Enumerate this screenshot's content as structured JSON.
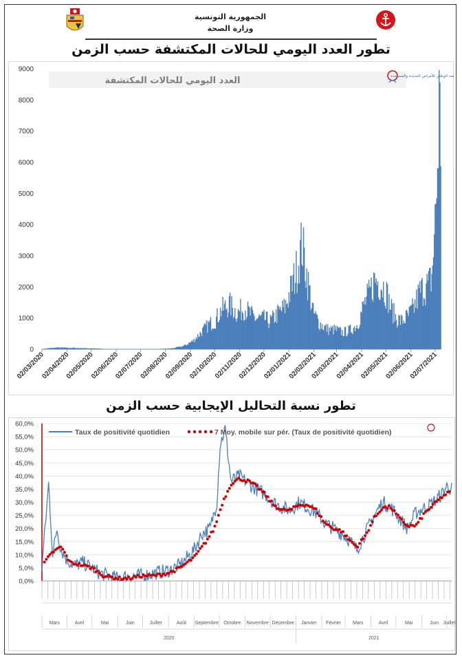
{
  "header": {
    "country_name": "الجمهورية التونسية",
    "ministry_name": "وزارة الصحة",
    "emblem_left_icon": "tunisia-coat-of-arms-icon",
    "emblem_right_icon": "health-ministry-anchor-logo-icon"
  },
  "section1": {
    "title": "تطور العدد اليومي للحالات المكتشفة حسب الزمن"
  },
  "section2": {
    "title": "تطور نسبة التحاليل الإيجابية حسب الزمن"
  },
  "observatory_logo_text": "المرصد الوطني للأمراض الجديدة والمستجدة",
  "chart_data": [
    {
      "type": "bar",
      "title": "العدد اليومي للحالات المكتشفة",
      "ylim": [
        0,
        9000
      ],
      "yticks": [
        0,
        1000,
        2000,
        3000,
        4000,
        5000,
        6000,
        7000,
        8000,
        9000
      ],
      "xticks": [
        "02/03/2020",
        "02/04/2020",
        "02/05/2020",
        "02/06/2020",
        "02/07/2020",
        "02/08/2020",
        "02/09/2020",
        "02/10/2020",
        "02/11/2020",
        "02/12/2020",
        "02/01/2021",
        "02/02/2021",
        "02/03/2021",
        "02/04/2021",
        "02/05/2021",
        "02/06/2021",
        "02/07/2021"
      ],
      "x_start": "2020-03-02",
      "x_end": "2021-07-09",
      "color": "#4a7ebb",
      "series": [
        {
          "x": [
            "2020-03-02",
            "2020-03-20",
            "2020-04-05",
            "2020-04-20",
            "2020-05-05",
            "2020-05-20",
            "2020-06-10",
            "2020-07-05",
            "2020-07-25",
            "2020-08-10",
            "2020-08-25",
            "2020-09-05",
            "2020-09-15",
            "2020-09-25",
            "2020-10-02",
            "2020-10-10",
            "2020-10-20",
            "2020-10-30",
            "2020-11-08",
            "2020-11-15",
            "2020-11-22",
            "2020-12-01",
            "2020-12-10",
            "2020-12-20",
            "2020-12-28",
            "2021-01-05",
            "2021-01-12",
            "2021-01-18",
            "2021-01-25",
            "2021-02-01",
            "2021-02-10",
            "2021-02-20",
            "2021-03-01",
            "2021-03-10",
            "2021-03-20",
            "2021-03-28",
            "2021-04-05",
            "2021-04-12",
            "2021-04-18",
            "2021-04-25",
            "2021-05-02",
            "2021-05-08",
            "2021-05-15",
            "2021-05-22",
            "2021-05-30",
            "2021-06-06",
            "2021-06-12",
            "2021-06-18",
            "2021-06-24",
            "2021-06-28",
            "2021-07-02",
            "2021-07-05",
            "2021-07-07",
            "2021-07-09"
          ],
          "y": [
            10,
            60,
            50,
            40,
            30,
            10,
            5,
            5,
            10,
            30,
            120,
            300,
            600,
            900,
            1000,
            1400,
            1600,
            1300,
            1500,
            1250,
            1100,
            1100,
            1000,
            1300,
            1500,
            2200,
            2900,
            3800,
            2500,
            1300,
            900,
            700,
            700,
            600,
            700,
            900,
            1600,
            2000,
            2500,
            2400,
            2100,
            1500,
            1100,
            1000,
            1200,
            1500,
            2000,
            2200,
            2300,
            2600,
            4500,
            6500,
            8900,
            7500
          ]
        }
      ]
    },
    {
      "type": "line",
      "ylim": [
        0,
        60
      ],
      "yticks": [
        "0,0%",
        "5,0%",
        "10,0%",
        "15,0%",
        "20,0%",
        "25,0%",
        "30,0%",
        "35,0%",
        "40,0%",
        "45,0%",
        "50,0%",
        "55,0%",
        "60,0%"
      ],
      "x_start": "2020-03-02",
      "x_end": "2021-07-07",
      "month_labels_2020": [
        "Mars",
        "Avril",
        "Mai",
        "Juin",
        "Juillet",
        "Août",
        "Septembre",
        "Octobre",
        "Novembre",
        "Décembre"
      ],
      "month_labels_2021": [
        "Janvier",
        "Février",
        "Mars",
        "Avril",
        "Mai",
        "Juin",
        "Juillet"
      ],
      "year_labels": [
        "2020",
        "2021"
      ],
      "series": [
        {
          "name": "Taux de positivité quotidien",
          "color": "#4a7ebb",
          "x": [
            "2020-03-02",
            "2020-03-10",
            "2020-03-15",
            "2020-03-20",
            "2020-03-25",
            "2020-04-01",
            "2020-04-10",
            "2020-04-20",
            "2020-05-01",
            "2020-05-10",
            "2020-05-20",
            "2020-06-01",
            "2020-06-15",
            "2020-07-01",
            "2020-07-15",
            "2020-08-01",
            "2020-08-15",
            "2020-09-01",
            "2020-09-10",
            "2020-09-20",
            "2020-09-28",
            "2020-10-02",
            "2020-10-08",
            "2020-10-15",
            "2020-10-25",
            "2020-11-05",
            "2020-11-15",
            "2020-11-25",
            "2020-12-05",
            "2020-12-15",
            "2020-12-25",
            "2021-01-05",
            "2021-01-15",
            "2021-01-25",
            "2021-02-05",
            "2021-02-15",
            "2021-02-25",
            "2021-03-05",
            "2021-03-15",
            "2021-03-25",
            "2021-04-05",
            "2021-04-15",
            "2021-04-25",
            "2021-05-05",
            "2021-05-15",
            "2021-05-25",
            "2021-06-05",
            "2021-06-15",
            "2021-06-25",
            "2021-07-01",
            "2021-07-07"
          ],
          "y": [
            5,
            37,
            10,
            20,
            12,
            8,
            6,
            7,
            5,
            3,
            2,
            1,
            2,
            2,
            3,
            4,
            6,
            12,
            18,
            20,
            30,
            52,
            58,
            38,
            40,
            37,
            35,
            33,
            30,
            28,
            27,
            30,
            28,
            26,
            22,
            20,
            18,
            16,
            12,
            18,
            25,
            30,
            28,
            24,
            20,
            26,
            28,
            30,
            33,
            36,
            35
          ]
        },
        {
          "name": "7 Moy. mobile sur pér. (Taux de positivité quotidien)",
          "color": "#cc0000",
          "x": [
            "2020-03-05",
            "2020-03-15",
            "2020-03-25",
            "2020-04-05",
            "2020-04-20",
            "2020-05-01",
            "2020-05-15",
            "2020-06-01",
            "2020-06-15",
            "2020-07-01",
            "2020-07-15",
            "2020-08-01",
            "2020-08-15",
            "2020-09-01",
            "2020-09-15",
            "2020-09-25",
            "2020-10-05",
            "2020-10-15",
            "2020-10-25",
            "2020-11-05",
            "2020-11-15",
            "2020-11-25",
            "2020-12-05",
            "2020-12-15",
            "2020-12-25",
            "2021-01-05",
            "2021-01-15",
            "2021-01-25",
            "2021-02-05",
            "2021-02-15",
            "2021-02-25",
            "2021-03-05",
            "2021-03-15",
            "2021-03-25",
            "2021-04-05",
            "2021-04-15",
            "2021-04-25",
            "2021-05-05",
            "2021-05-15",
            "2021-05-25",
            "2021-06-05",
            "2021-06-15",
            "2021-06-25",
            "2021-07-05"
          ],
          "y": [
            7,
            11,
            13,
            7,
            6,
            5,
            2,
            1,
            1,
            2,
            2,
            3,
            5,
            9,
            15,
            20,
            30,
            37,
            39,
            38,
            36,
            33,
            29,
            27,
            27,
            29,
            29,
            27,
            22,
            20,
            19,
            16,
            13,
            17,
            24,
            28,
            28,
            24,
            21,
            21,
            26,
            29,
            32,
            34
          ]
        }
      ]
    }
  ]
}
